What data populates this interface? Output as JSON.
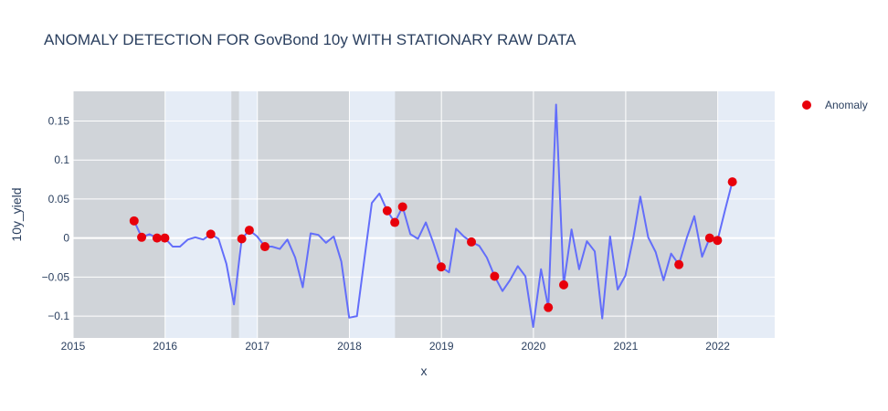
{
  "chart_data": {
    "type": "line",
    "title": "ANOMALY DETECTION FOR GovBond 10y WITH STATIONARY RAW DATA",
    "xlabel": "x",
    "ylabel": "10y_yield",
    "xlim": [
      "2015-01-01",
      "2022-08-15"
    ],
    "ylim": [
      -0.128,
      0.188
    ],
    "x_ticks": [
      "2015",
      "2016",
      "2017",
      "2018",
      "2019",
      "2020",
      "2021",
      "2022"
    ],
    "y_ticks": [
      0.15,
      0.1,
      0.05,
      0,
      -0.05,
      -0.1
    ],
    "y_tick_labels": [
      "0.15",
      "0.1",
      "0.05",
      "0",
      "−0.05",
      "−0.1"
    ],
    "grid": true,
    "legend_position": "top-right",
    "colors": {
      "line": "#636efa",
      "anomaly": "#e8000b",
      "plot_bg": "#e5ecf6",
      "shade": "#bcbcbc",
      "grid": "#ffffff",
      "text": "#2a3f5f"
    },
    "shaded_regions": [
      [
        "2015-01-01",
        "2016-01-01"
      ],
      [
        "2016-09-20",
        "2016-10-20"
      ],
      [
        "2017-01-01",
        "2018-01-01"
      ],
      [
        "2018-07-01",
        "2022-01-01"
      ]
    ],
    "series": [
      {
        "name": "",
        "mode": "lines",
        "x": [
          "2015-08-31",
          "2015-09-30",
          "2015-10-31",
          "2015-11-30",
          "2015-12-31",
          "2016-01-31",
          "2016-02-29",
          "2016-03-31",
          "2016-04-30",
          "2016-05-31",
          "2016-06-30",
          "2016-07-31",
          "2016-08-31",
          "2016-09-30",
          "2016-10-31",
          "2016-11-30",
          "2016-12-31",
          "2017-01-31",
          "2017-02-28",
          "2017-03-31",
          "2017-04-30",
          "2017-05-31",
          "2017-06-30",
          "2017-07-31",
          "2017-08-31",
          "2017-09-30",
          "2017-10-31",
          "2017-11-30",
          "2017-12-31",
          "2018-01-31",
          "2018-02-28",
          "2018-03-31",
          "2018-04-30",
          "2018-05-31",
          "2018-06-30",
          "2018-07-31",
          "2018-08-31",
          "2018-09-30",
          "2018-10-31",
          "2018-11-30",
          "2018-12-31",
          "2019-01-31",
          "2019-02-28",
          "2019-03-31",
          "2019-04-30",
          "2019-05-31",
          "2019-06-30",
          "2019-07-31",
          "2019-08-31",
          "2019-09-30",
          "2019-10-31",
          "2019-11-30",
          "2019-12-31",
          "2020-01-31",
          "2020-02-29",
          "2020-03-31",
          "2020-04-30",
          "2020-05-31",
          "2020-06-30",
          "2020-07-31",
          "2020-08-31",
          "2020-09-30",
          "2020-10-31",
          "2020-11-30",
          "2020-12-31",
          "2021-01-31",
          "2021-02-28",
          "2021-03-31",
          "2021-04-30",
          "2021-05-31",
          "2021-06-30",
          "2021-07-31",
          "2021-08-31",
          "2021-09-30",
          "2021-10-31",
          "2021-11-30",
          "2021-12-31",
          "2022-01-31",
          "2022-02-28"
        ],
        "y": [
          0.022,
          0.001,
          0.005,
          0.0,
          0.0,
          -0.011,
          -0.011,
          -0.002,
          0.001,
          -0.002,
          0.005,
          -0.001,
          -0.033,
          -0.085,
          -0.001,
          0.01,
          0.002,
          -0.011,
          -0.011,
          -0.014,
          -0.002,
          -0.025,
          -0.063,
          0.006,
          0.004,
          -0.006,
          0.002,
          -0.03,
          -0.102,
          -0.1,
          -0.03,
          0.045,
          0.057,
          0.035,
          0.02,
          0.04,
          0.005,
          -0.001,
          0.02,
          -0.006,
          -0.037,
          -0.044,
          0.012,
          0.002,
          -0.005,
          -0.01,
          -0.025,
          -0.049,
          -0.068,
          -0.054,
          -0.036,
          -0.049,
          -0.114,
          -0.04,
          -0.089,
          0.171,
          -0.06,
          0.011,
          -0.04,
          -0.004,
          -0.017,
          -0.103,
          0.002,
          -0.066,
          -0.048,
          0.0,
          0.053,
          0.001,
          -0.018,
          -0.054,
          -0.02,
          -0.034,
          0.0,
          0.028,
          -0.024,
          0.0,
          -0.003,
          0.037,
          0.072
        ]
      },
      {
        "name": "Anomaly",
        "mode": "markers",
        "x": [
          "2015-08-31",
          "2015-09-30",
          "2015-11-30",
          "2015-12-31",
          "2016-06-30",
          "2016-10-31",
          "2016-11-30",
          "2017-01-31",
          "2018-05-31",
          "2018-06-30",
          "2018-07-31",
          "2018-12-31",
          "2019-04-30",
          "2019-07-31",
          "2020-02-29",
          "2020-04-30",
          "2021-07-31",
          "2021-11-30",
          "2021-12-31",
          "2022-02-28"
        ],
        "y": [
          0.022,
          0.001,
          0.0,
          0.0,
          0.005,
          -0.001,
          0.01,
          -0.011,
          0.035,
          0.02,
          0.04,
          -0.037,
          -0.005,
          -0.049,
          -0.089,
          -0.06,
          -0.034,
          0.0,
          -0.003,
          0.072
        ]
      }
    ]
  }
}
